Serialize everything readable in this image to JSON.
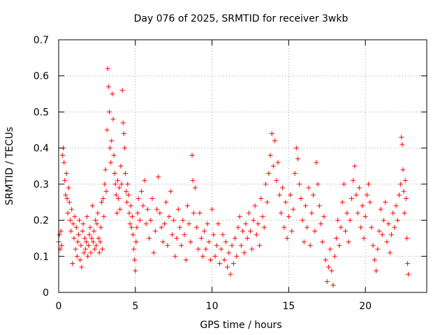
{
  "chart_data": {
    "type": "scatter",
    "title": "Day 076 of 2025, SRMTID for receiver 3wkb",
    "xlabel": "GPS time / hours",
    "ylabel": "SRMTID / TECUs",
    "xlim": [
      0,
      24
    ],
    "ylim": [
      0,
      0.7
    ],
    "x_ticks": [
      0,
      5,
      10,
      15,
      20
    ],
    "x_tick_labels": [
      "0",
      "5",
      "10",
      "15",
      "20"
    ],
    "y_ticks": [
      0,
      0.1,
      0.2,
      0.3,
      0.4,
      0.5,
      0.6,
      0.7
    ],
    "y_tick_labels": [
      "0",
      "0.1",
      "0.2",
      "0.3",
      "0.4",
      "0.5",
      "0.6",
      "0.7"
    ],
    "grid": true,
    "marker": "+",
    "series": [
      {
        "name": "SRMTID",
        "color": "#ff0000",
        "points": [
          [
            0.0,
            0.14
          ],
          [
            0.05,
            0.16
          ],
          [
            0.1,
            0.12
          ],
          [
            0.15,
            0.17
          ],
          [
            0.2,
            0.13
          ],
          [
            0.25,
            0.38
          ],
          [
            0.3,
            0.4
          ],
          [
            0.35,
            0.36
          ],
          [
            0.4,
            0.31
          ],
          [
            0.45,
            0.27
          ],
          [
            0.5,
            0.33
          ],
          [
            0.55,
            0.26
          ],
          [
            0.6,
            0.22
          ],
          [
            0.65,
            0.29
          ],
          [
            0.7,
            0.25
          ],
          [
            0.75,
            0.2
          ],
          [
            0.8,
            0.17
          ],
          [
            0.85,
            0.23
          ],
          [
            0.9,
            0.08
          ],
          [
            0.95,
            0.19
          ],
          [
            1.0,
            0.15
          ],
          [
            1.05,
            0.21
          ],
          [
            1.1,
            0.12
          ],
          [
            1.15,
            0.18
          ],
          [
            1.2,
            0.1
          ],
          [
            1.25,
            0.14
          ],
          [
            1.3,
            0.16
          ],
          [
            1.35,
            0.2
          ],
          [
            1.4,
            0.09
          ],
          [
            1.45,
            0.13
          ],
          [
            1.5,
            0.07
          ],
          [
            1.55,
            0.17
          ],
          [
            1.6,
            0.19
          ],
          [
            1.65,
            0.11
          ],
          [
            1.7,
            0.15
          ],
          [
            1.75,
            0.12
          ],
          [
            1.8,
            0.14
          ],
          [
            1.85,
            0.21
          ],
          [
            1.9,
            0.1
          ],
          [
            1.95,
            0.13
          ],
          [
            2.0,
            0.16
          ],
          [
            2.05,
            0.18
          ],
          [
            2.1,
            0.11
          ],
          [
            2.15,
            0.15
          ],
          [
            2.2,
            0.24
          ],
          [
            2.25,
            0.14
          ],
          [
            2.3,
            0.17
          ],
          [
            2.35,
            0.12
          ],
          [
            2.4,
            0.2
          ],
          [
            2.45,
            0.13
          ],
          [
            2.5,
            0.19
          ],
          [
            2.55,
            0.22
          ],
          [
            2.6,
            0.15
          ],
          [
            2.65,
            0.11
          ],
          [
            2.7,
            0.14
          ],
          [
            2.75,
            0.18
          ],
          [
            2.8,
            0.25
          ],
          [
            2.85,
            0.12
          ],
          [
            2.9,
            0.26
          ],
          [
            2.95,
            0.21
          ],
          [
            3.0,
            0.3
          ],
          [
            3.05,
            0.34
          ],
          [
            3.1,
            0.28
          ],
          [
            3.15,
            0.45
          ],
          [
            3.2,
            0.62
          ],
          [
            3.25,
            0.57
          ],
          [
            3.3,
            0.5
          ],
          [
            3.35,
            0.4
          ],
          [
            3.4,
            0.36
          ],
          [
            3.45,
            0.42
          ],
          [
            3.5,
            0.55
          ],
          [
            3.55,
            0.48
          ],
          [
            3.6,
            0.38
          ],
          [
            3.65,
            0.33
          ],
          [
            3.7,
            0.3
          ],
          [
            3.75,
            0.27
          ],
          [
            3.8,
            0.22
          ],
          [
            3.85,
            0.31
          ],
          [
            3.9,
            0.26
          ],
          [
            3.95,
            0.29
          ],
          [
            4.0,
            0.23
          ],
          [
            4.05,
            0.35
          ],
          [
            4.1,
            0.3
          ],
          [
            4.15,
            0.56
          ],
          [
            4.2,
            0.47
          ],
          [
            4.25,
            0.44
          ],
          [
            4.3,
            0.4
          ],
          [
            4.35,
            0.33
          ],
          [
            4.4,
            0.28
          ],
          [
            4.45,
            0.25
          ],
          [
            4.5,
            0.3
          ],
          [
            4.55,
            0.27
          ],
          [
            4.6,
            0.22
          ],
          [
            4.65,
            0.19
          ],
          [
            4.7,
            0.24
          ],
          [
            4.75,
            0.18
          ],
          [
            4.8,
            0.21
          ],
          [
            4.85,
            0.16
          ],
          [
            4.9,
            0.12
          ],
          [
            4.95,
            0.09
          ],
          [
            5.0,
            0.06
          ],
          [
            5.05,
            0.14
          ],
          [
            5.1,
            0.18
          ],
          [
            5.15,
            0.22
          ],
          [
            5.2,
            0.26
          ],
          [
            5.3,
            0.2
          ],
          [
            5.4,
            0.28
          ],
          [
            5.5,
            0.24
          ],
          [
            5.6,
            0.31
          ],
          [
            5.7,
            0.19
          ],
          [
            5.8,
            0.23
          ],
          [
            5.9,
            0.15
          ],
          [
            6.0,
            0.2
          ],
          [
            6.1,
            0.26
          ],
          [
            6.2,
            0.11
          ],
          [
            6.3,
            0.17
          ],
          [
            6.4,
            0.23
          ],
          [
            6.5,
            0.32
          ],
          [
            6.6,
            0.22
          ],
          [
            6.7,
            0.18
          ],
          [
            6.8,
            0.14
          ],
          [
            6.9,
            0.19
          ],
          [
            7.0,
            0.25
          ],
          [
            7.1,
            0.13
          ],
          [
            7.2,
            0.21
          ],
          [
            7.3,
            0.28
          ],
          [
            7.4,
            0.16
          ],
          [
            7.5,
            0.2
          ],
          [
            7.6,
            0.1
          ],
          [
            7.7,
            0.15
          ],
          [
            7.8,
            0.23
          ],
          [
            7.9,
            0.18
          ],
          [
            8.0,
            0.13
          ],
          [
            8.1,
            0.2
          ],
          [
            8.2,
            0.16
          ],
          [
            8.3,
            0.09
          ],
          [
            8.4,
            0.24
          ],
          [
            8.5,
            0.19
          ],
          [
            8.6,
            0.14
          ],
          [
            8.7,
            0.38
          ],
          [
            8.75,
            0.31
          ],
          [
            8.8,
            0.22
          ],
          [
            8.9,
            0.29
          ],
          [
            9.0,
            0.18
          ],
          [
            9.1,
            0.12
          ],
          [
            9.2,
            0.22
          ],
          [
            9.3,
            0.15
          ],
          [
            9.4,
            0.1
          ],
          [
            9.5,
            0.17
          ],
          [
            9.6,
            0.12
          ],
          [
            9.7,
            0.19
          ],
          [
            9.8,
            0.14
          ],
          [
            9.9,
            0.09
          ],
          [
            10.0,
            0.23
          ],
          [
            10.1,
            0.16
          ],
          [
            10.2,
            0.1
          ],
          [
            10.3,
            0.13
          ],
          [
            10.4,
            0.19
          ],
          [
            10.5,
            0.08
          ],
          [
            10.6,
            0.12
          ],
          [
            10.7,
            0.16
          ],
          [
            10.8,
            0.09
          ],
          [
            10.9,
            0.14
          ],
          [
            11.0,
            0.07
          ],
          [
            11.1,
            0.11
          ],
          [
            11.2,
            0.05
          ],
          [
            11.3,
            0.13
          ],
          [
            11.4,
            0.08
          ],
          [
            11.5,
            0.15
          ],
          [
            11.6,
            0.1
          ],
          [
            11.7,
            0.18
          ],
          [
            11.8,
            0.21
          ],
          [
            11.9,
            0.13
          ],
          [
            12.0,
            0.17
          ],
          [
            12.1,
            0.11
          ],
          [
            12.2,
            0.19
          ],
          [
            12.3,
            0.15
          ],
          [
            12.4,
            0.22
          ],
          [
            12.5,
            0.17
          ],
          [
            12.6,
            0.12
          ],
          [
            12.7,
            0.2
          ],
          [
            12.8,
            0.24
          ],
          [
            12.9,
            0.16
          ],
          [
            13.0,
            0.19
          ],
          [
            13.1,
            0.13
          ],
          [
            13.2,
            0.26
          ],
          [
            13.3,
            0.21
          ],
          [
            13.4,
            0.18
          ],
          [
            13.5,
            0.3
          ],
          [
            13.6,
            0.25
          ],
          [
            13.7,
            0.33
          ],
          [
            13.8,
            0.38
          ],
          [
            13.9,
            0.44
          ],
          [
            14.0,
            0.35
          ],
          [
            14.1,
            0.42
          ],
          [
            14.2,
            0.31
          ],
          [
            14.3,
            0.36
          ],
          [
            14.4,
            0.27
          ],
          [
            14.5,
            0.22
          ],
          [
            14.6,
            0.29
          ],
          [
            14.7,
            0.18
          ],
          [
            14.8,
            0.25
          ],
          [
            14.9,
            0.15
          ],
          [
            15.0,
            0.21
          ],
          [
            15.1,
            0.27
          ],
          [
            15.2,
            0.17
          ],
          [
            15.3,
            0.23
          ],
          [
            15.4,
            0.33
          ],
          [
            15.5,
            0.4
          ],
          [
            15.6,
            0.37
          ],
          [
            15.7,
            0.3
          ],
          [
            15.8,
            0.26
          ],
          [
            15.9,
            0.2
          ],
          [
            16.0,
            0.14
          ],
          [
            16.1,
            0.24
          ],
          [
            16.2,
            0.18
          ],
          [
            16.3,
            0.29
          ],
          [
            16.4,
            0.13
          ],
          [
            16.5,
            0.22
          ],
          [
            16.6,
            0.27
          ],
          [
            16.7,
            0.17
          ],
          [
            16.8,
            0.36
          ],
          [
            16.9,
            0.3
          ],
          [
            17.0,
            0.24
          ],
          [
            17.1,
            0.19
          ],
          [
            17.2,
            0.14
          ],
          [
            17.3,
            0.21
          ],
          [
            17.4,
            0.09
          ],
          [
            17.5,
            0.03
          ],
          [
            17.6,
            0.07
          ],
          [
            17.7,
            0.12
          ],
          [
            17.8,
            0.06
          ],
          [
            17.9,
            0.02
          ],
          [
            18.0,
            0.1
          ],
          [
            18.1,
            0.15
          ],
          [
            18.2,
            0.2
          ],
          [
            18.3,
            0.13
          ],
          [
            18.4,
            0.18
          ],
          [
            18.5,
            0.25
          ],
          [
            18.6,
            0.3
          ],
          [
            18.7,
            0.17
          ],
          [
            18.8,
            0.22
          ],
          [
            18.9,
            0.14
          ],
          [
            19.0,
            0.2
          ],
          [
            19.1,
            0.26
          ],
          [
            19.2,
            0.31
          ],
          [
            19.3,
            0.35
          ],
          [
            19.4,
            0.27
          ],
          [
            19.5,
            0.22
          ],
          [
            19.6,
            0.29
          ],
          [
            19.7,
            0.18
          ],
          [
            19.8,
            0.24
          ],
          [
            19.9,
            0.15
          ],
          [
            20.0,
            0.21
          ],
          [
            20.1,
            0.27
          ],
          [
            20.2,
            0.3
          ],
          [
            20.3,
            0.25
          ],
          [
            20.4,
            0.18
          ],
          [
            20.5,
            0.13
          ],
          [
            20.6,
            0.09
          ],
          [
            20.7,
            0.06
          ],
          [
            20.8,
            0.12
          ],
          [
            20.9,
            0.17
          ],
          [
            21.0,
            0.23
          ],
          [
            21.1,
            0.16
          ],
          [
            21.2,
            0.2
          ],
          [
            21.3,
            0.25
          ],
          [
            21.4,
            0.14
          ],
          [
            21.5,
            0.19
          ],
          [
            21.6,
            0.11
          ],
          [
            21.7,
            0.16
          ],
          [
            21.8,
            0.22
          ],
          [
            21.9,
            0.18
          ],
          [
            22.0,
            0.24
          ],
          [
            22.1,
            0.2
          ],
          [
            22.2,
            0.27
          ],
          [
            22.3,
            0.3
          ],
          [
            22.35,
            0.43
          ],
          [
            22.4,
            0.41
          ],
          [
            22.45,
            0.34
          ],
          [
            22.5,
            0.28
          ],
          [
            22.55,
            0.22
          ],
          [
            22.6,
            0.31
          ],
          [
            22.65,
            0.26
          ],
          [
            22.7,
            0.15
          ],
          [
            22.75,
            0.08
          ],
          [
            22.8,
            0.05
          ]
        ]
      }
    ]
  }
}
